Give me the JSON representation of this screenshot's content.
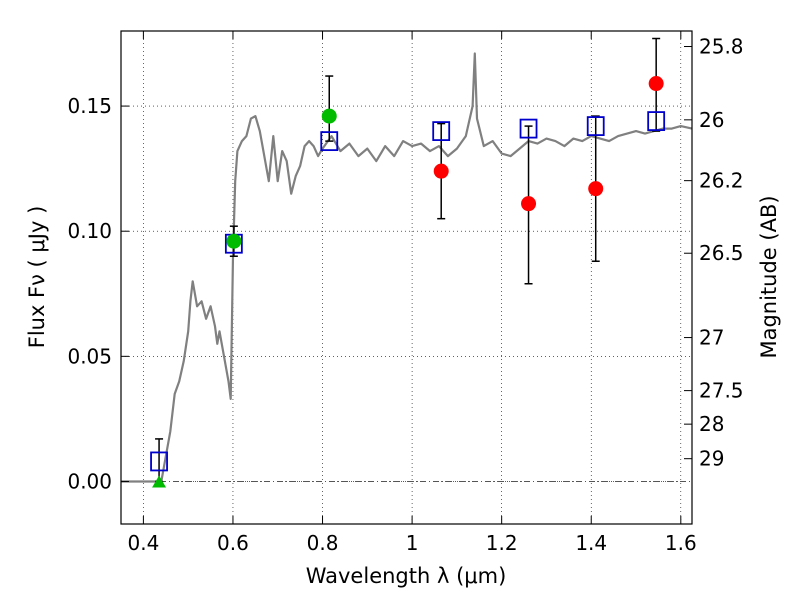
{
  "chart_data": {
    "type": "scatter",
    "xlabel": "Wavelength  λ (μm)",
    "ylabel": "Flux  Fν  ( μJy )",
    "right_ylabel": "Magnitude (AB)",
    "xlim": [
      0.35,
      1.625
    ],
    "ylim": [
      -0.017,
      0.18
    ],
    "grid": true,
    "x_ticks": [
      0.4,
      0.6,
      0.8,
      1.0,
      1.2,
      1.4,
      1.6
    ],
    "x_tick_labels": [
      "0.4",
      "0.6",
      "0.8",
      "1",
      "1.2",
      "1.4",
      "1.6"
    ],
    "y_ticks": [
      0.0,
      0.05,
      0.1,
      0.15
    ],
    "y_tick_labels": [
      "0.00",
      "0.05",
      "0.10",
      "0.15"
    ],
    "right_ticks": [
      {
        "label": "25.8",
        "flux": 0.1738
      },
      {
        "label": "26",
        "flux": 0.1445
      },
      {
        "label": "26.2",
        "flux": 0.1202
      },
      {
        "label": "26.5",
        "flux": 0.0912
      },
      {
        "label": "27",
        "flux": 0.0575
      },
      {
        "label": "27.5",
        "flux": 0.0363
      },
      {
        "label": "28",
        "flux": 0.0229
      },
      {
        "label": "29",
        "flux": 0.0091
      }
    ],
    "zero_line": 0.0,
    "series": [
      {
        "style": "line",
        "color": "#808080",
        "x": [
          0.35,
          0.44,
          0.45,
          0.46,
          0.47,
          0.48,
          0.49,
          0.5,
          0.505,
          0.51,
          0.515,
          0.52,
          0.53,
          0.54,
          0.55,
          0.56,
          0.565,
          0.57,
          0.58,
          0.59,
          0.595,
          0.6,
          0.605,
          0.61,
          0.62,
          0.63,
          0.64,
          0.65,
          0.66,
          0.67,
          0.68,
          0.69,
          0.7,
          0.71,
          0.72,
          0.73,
          0.74,
          0.75,
          0.76,
          0.77,
          0.78,
          0.79,
          0.8,
          0.82,
          0.84,
          0.86,
          0.88,
          0.9,
          0.92,
          0.94,
          0.96,
          0.98,
          1.0,
          1.02,
          1.04,
          1.06,
          1.08,
          1.1,
          1.12,
          1.135,
          1.14,
          1.145,
          1.16,
          1.18,
          1.2,
          1.22,
          1.24,
          1.26,
          1.28,
          1.3,
          1.32,
          1.34,
          1.36,
          1.38,
          1.4,
          1.42,
          1.44,
          1.46,
          1.48,
          1.5,
          1.52,
          1.54,
          1.56,
          1.58,
          1.6,
          1.625
        ],
        "y": [
          0.0,
          0.0,
          0.01,
          0.02,
          0.035,
          0.04,
          0.048,
          0.06,
          0.072,
          0.08,
          0.075,
          0.07,
          0.072,
          0.065,
          0.07,
          0.062,
          0.055,
          0.06,
          0.05,
          0.04,
          0.033,
          0.09,
          0.12,
          0.132,
          0.136,
          0.138,
          0.145,
          0.146,
          0.14,
          0.13,
          0.12,
          0.138,
          0.12,
          0.132,
          0.128,
          0.115,
          0.122,
          0.126,
          0.134,
          0.136,
          0.134,
          0.13,
          0.133,
          0.138,
          0.132,
          0.135,
          0.13,
          0.133,
          0.128,
          0.134,
          0.13,
          0.136,
          0.134,
          0.135,
          0.132,
          0.134,
          0.13,
          0.133,
          0.138,
          0.15,
          0.171,
          0.145,
          0.134,
          0.136,
          0.131,
          0.13,
          0.133,
          0.136,
          0.135,
          0.137,
          0.136,
          0.134,
          0.137,
          0.136,
          0.138,
          0.137,
          0.136,
          0.138,
          0.139,
          0.14,
          0.139,
          0.14,
          0.141,
          0.141,
          0.142,
          0.141
        ]
      },
      {
        "style": "open-square",
        "color": "#0000cc",
        "points": [
          {
            "x": 0.435,
            "y": 0.008,
            "err_hi": 0.017,
            "err_lo": 0.0
          },
          {
            "x": 0.602,
            "y": 0.095,
            "err_hi": 0.102,
            "err_lo": 0.09
          },
          {
            "x": 0.815,
            "y": 0.136
          },
          {
            "x": 1.065,
            "y": 0.14
          },
          {
            "x": 1.26,
            "y": 0.141
          },
          {
            "x": 1.41,
            "y": 0.142
          },
          {
            "x": 1.545,
            "y": 0.144
          }
        ]
      },
      {
        "style": "filled-circle",
        "color": "#00bb00",
        "points": [
          {
            "x": 0.602,
            "y": 0.096
          },
          {
            "x": 0.815,
            "y": 0.146,
            "err_hi": 0.162,
            "err_lo": 0.136
          }
        ]
      },
      {
        "style": "filled-circle",
        "color": "#ff0000",
        "points": [
          {
            "x": 1.065,
            "y": 0.124,
            "err_hi": 0.143,
            "err_lo": 0.105
          },
          {
            "x": 1.26,
            "y": 0.111,
            "err_hi": 0.142,
            "err_lo": 0.079
          },
          {
            "x": 1.41,
            "y": 0.117,
            "err_hi": 0.146,
            "err_lo": 0.088
          },
          {
            "x": 1.545,
            "y": 0.159,
            "err_hi": 0.177,
            "err_lo": 0.14
          }
        ]
      },
      {
        "style": "filled-triangle",
        "color": "#00bb00",
        "points": [
          {
            "x": 0.435,
            "y": 0.0
          }
        ]
      }
    ]
  }
}
